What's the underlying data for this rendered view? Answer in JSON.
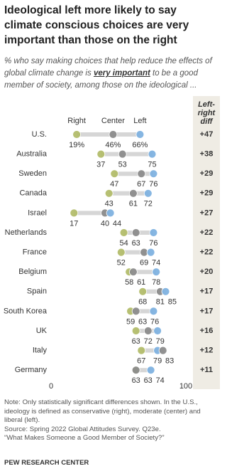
{
  "chart_data": {
    "type": "dot",
    "title": "Ideological left more likely to say climate conscious choices are very important than those on the right",
    "subtitle": [
      "% who say making choices that help reduce the effects of global climate change is ",
      "very important",
      " to be a good member of society, among those on the ideological ..."
    ],
    "categories": [
      "U.S.",
      "Australia",
      "Sweden",
      "Canada",
      "Israel",
      "Netherlands",
      "France",
      "Belgium",
      "Spain",
      "South Korea",
      "UK",
      "Italy",
      "Germany"
    ],
    "series": [
      {
        "name": "Right",
        "color": "#b3bd6b",
        "label_color": "#98a33f",
        "values": [
          19,
          37,
          47,
          43,
          17,
          54,
          52,
          58,
          68,
          59,
          63,
          67,
          63
        ],
        "value_labels": [
          "19%",
          "37",
          "47",
          "43",
          "17",
          "54",
          "52",
          "58",
          "68",
          "59",
          "63",
          "67",
          "63"
        ]
      },
      {
        "name": "Center",
        "color": "#8c8c8c",
        "label_color": "#666666",
        "values": [
          46,
          53,
          67,
          61,
          40,
          63,
          69,
          61,
          81,
          63,
          72,
          83,
          63
        ],
        "value_labels": [
          "46%",
          "53",
          "67",
          "61",
          "40",
          "63",
          "69",
          "61",
          "81",
          "63",
          "72",
          "83",
          "63"
        ]
      },
      {
        "name": "Left",
        "color": "#7fb2e0",
        "label_color": "#2f77b8",
        "values": [
          66,
          75,
          76,
          72,
          44,
          76,
          74,
          78,
          85,
          76,
          79,
          79,
          74
        ],
        "value_labels": [
          "66%",
          "75",
          "76",
          "72",
          "44",
          "76",
          "74",
          "78",
          "85",
          "76",
          "79",
          "79",
          "74"
        ]
      }
    ],
    "diff": {
      "header": "Left-right diff",
      "values": [
        47,
        38,
        29,
        29,
        27,
        22,
        22,
        20,
        17,
        17,
        16,
        12,
        11
      ],
      "value_labels": [
        "+47",
        "+38",
        "+29",
        "+29",
        "+27",
        "+22",
        "+22",
        "+20",
        "+17",
        "+17",
        "+16",
        "+12",
        "+11"
      ]
    },
    "xlim": [
      0,
      100
    ],
    "xticks": [
      0,
      100
    ],
    "note": "Note: Only statistically significant differences shown. In the U.S., ideology is defined as conservative (right), moderate (center) and liberal (left).",
    "source": "Source: Spring 2022 Global Attitudes Survey. Q23e.",
    "report": "“What Makes Someone a Good Member of Society?”",
    "footer": "PEW RESEARCH CENTER"
  }
}
